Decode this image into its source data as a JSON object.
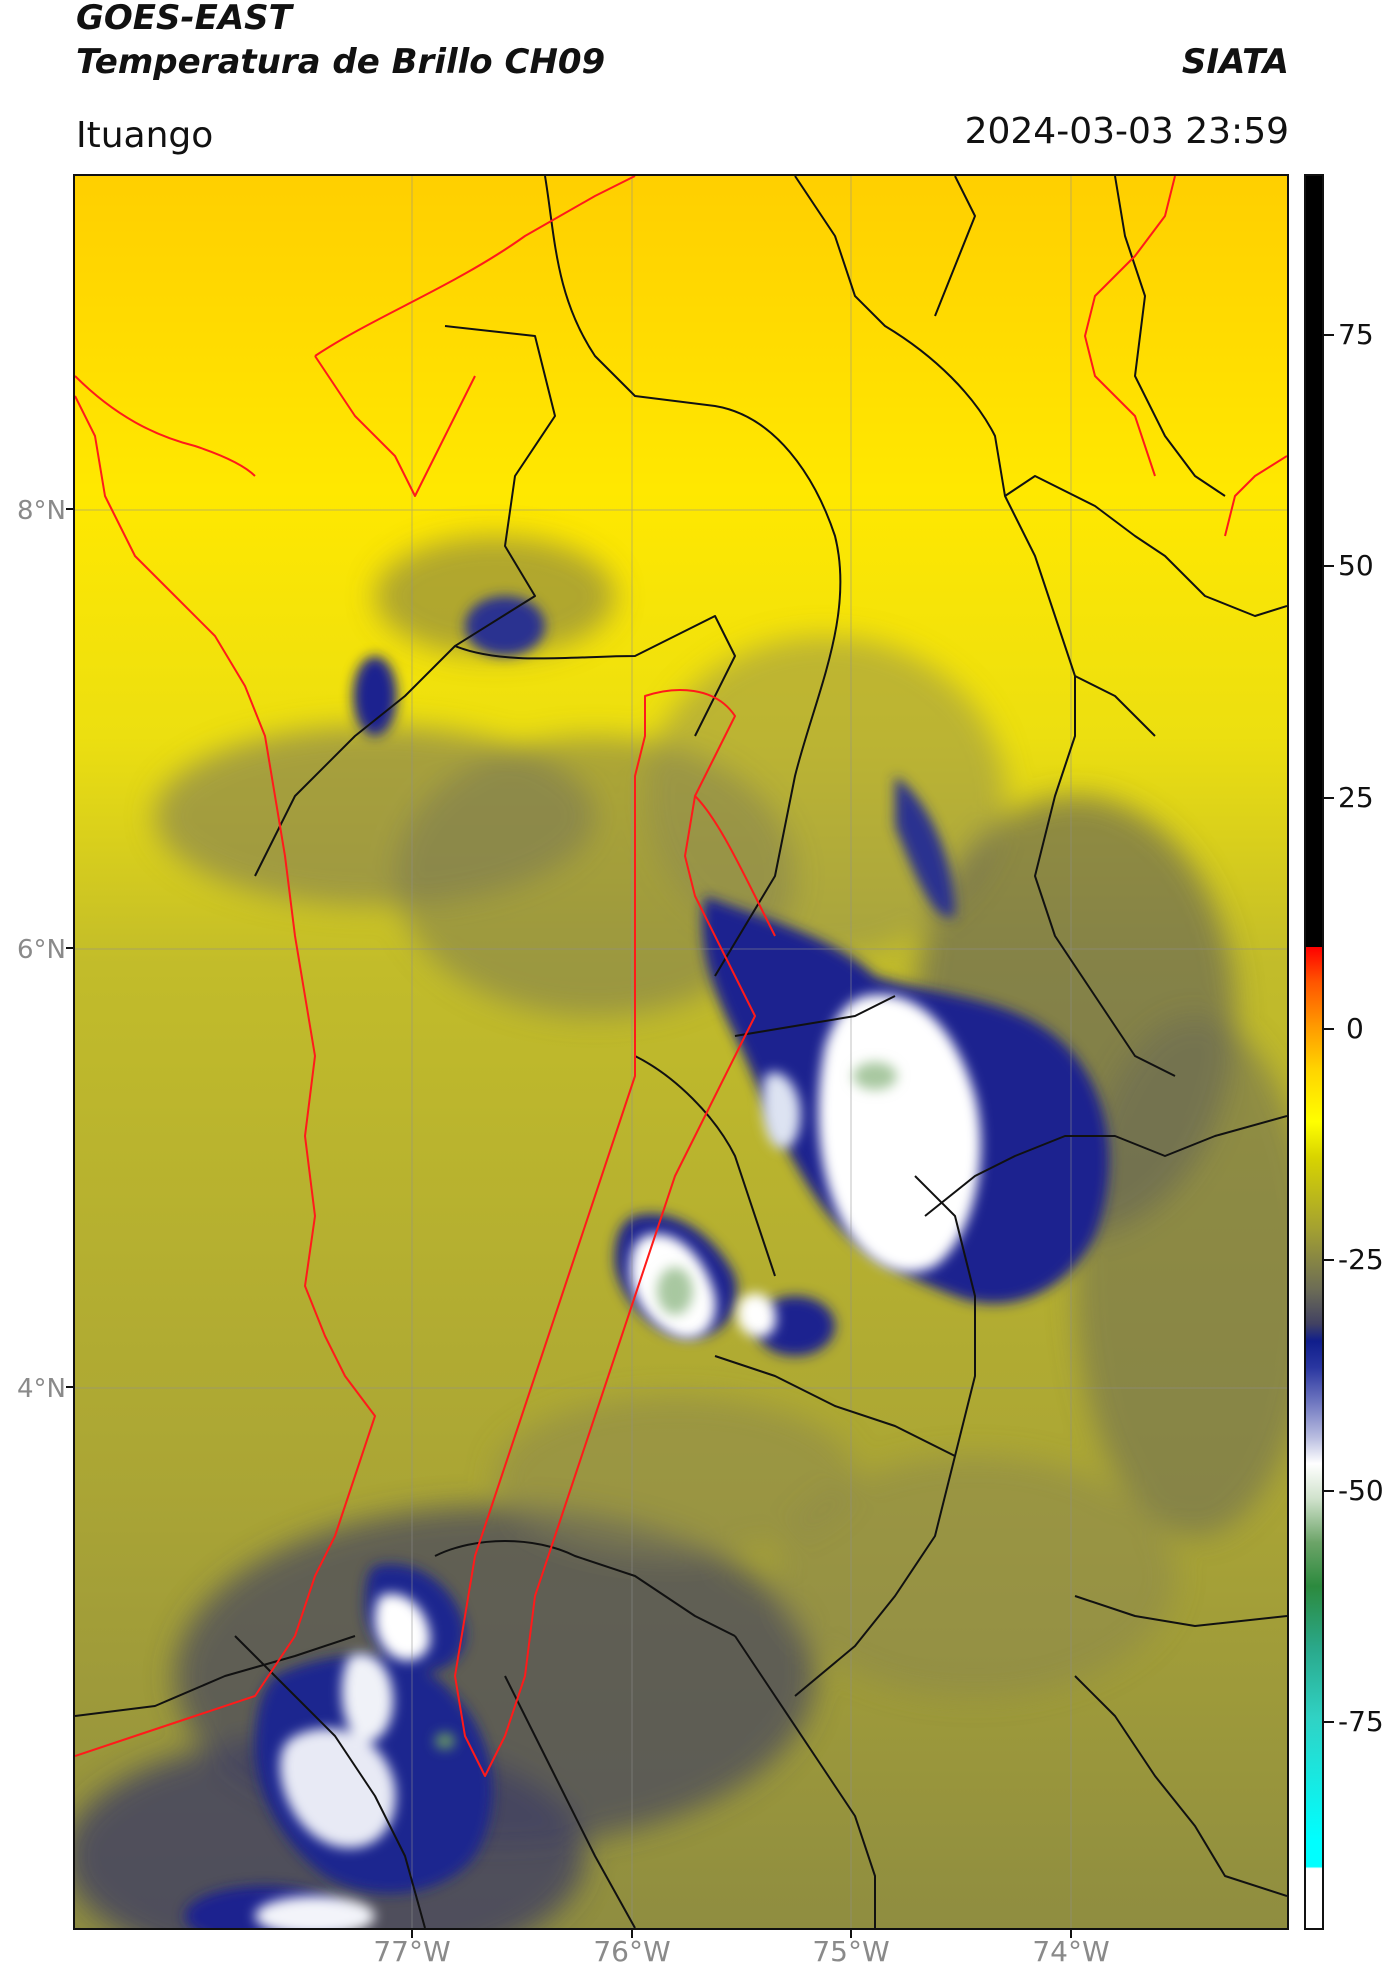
{
  "header": {
    "satellite": "GOES-EAST",
    "product": "Temperatura de Brillo CH09",
    "brand": "SIATA",
    "place": "Ituango",
    "timestamp": "2024-03-03 23:59"
  },
  "map": {
    "lat_labels": [
      "8°N",
      "6°N",
      "4°N"
    ],
    "lon_labels": [
      "77°W",
      "76°W",
      "75°W",
      "74°W"
    ]
  },
  "colorbar": {
    "labels": [
      "75",
      "50",
      "25",
      "0",
      "-25",
      "-50",
      "-75"
    ]
  },
  "colors": {
    "warm": "#ffee00",
    "mid": "#b8b33a",
    "cold": "#1a2390",
    "coldest": "#ffffff",
    "boundary_region": "#ff0000",
    "boundary_admin": "#111111"
  }
}
